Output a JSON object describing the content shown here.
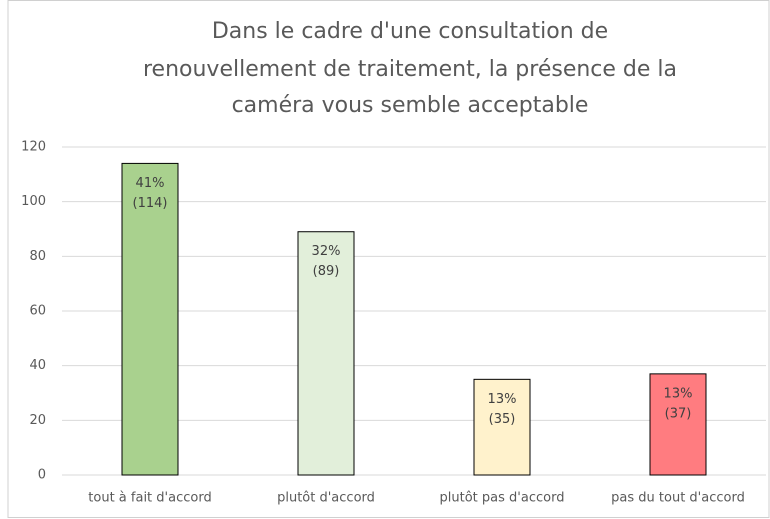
{
  "chart_data": {
    "type": "bar",
    "title": [
      "Dans le cadre d'une consultation de",
      "renouvellement de traitement, la présence de la",
      "caméra vous semble acceptable"
    ],
    "categories": [
      "tout à fait d'accord",
      "plutôt d'accord",
      "plutôt pas d'accord",
      "pas du tout d'accord"
    ],
    "values": [
      114,
      89,
      35,
      37
    ],
    "value_labels": [
      [
        "41%",
        "(114)"
      ],
      [
        "32%",
        "(89)"
      ],
      [
        "13%",
        "(35)"
      ],
      [
        "13%",
        "(37)"
      ]
    ],
    "colors": [
      "#a9d18e",
      "#e2efda",
      "#fff2cc",
      "#ff7c80"
    ],
    "ylim": [
      0,
      120
    ],
    "yticks": [
      0,
      20,
      40,
      60,
      80,
      100,
      120
    ],
    "grid": true
  }
}
